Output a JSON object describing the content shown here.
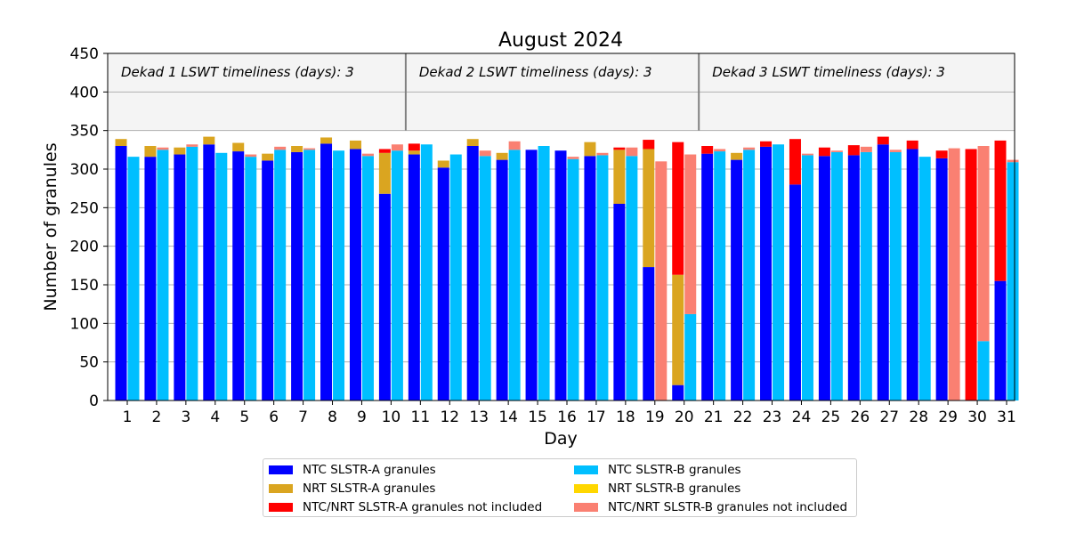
{
  "chart_data": {
    "type": "bar",
    "title": "August 2024",
    "xlabel": "Day",
    "ylabel": "Number of granules",
    "ylim": [
      0,
      450
    ],
    "yticks": [
      0,
      50,
      100,
      150,
      200,
      250,
      300,
      350,
      400,
      450
    ],
    "categories": [
      "1",
      "2",
      "3",
      "4",
      "5",
      "6",
      "7",
      "8",
      "9",
      "10",
      "11",
      "12",
      "13",
      "14",
      "15",
      "16",
      "17",
      "18",
      "19",
      "20",
      "21",
      "22",
      "23",
      "24",
      "25",
      "26",
      "27",
      "28",
      "29",
      "30",
      "31"
    ],
    "grid": true,
    "legend_position": "bottom-center",
    "shaded_band": [
      350,
      450
    ],
    "dekads": [
      {
        "label": "Dekad 1 LSWT timeliness (days): 3",
        "start_day": 1,
        "end_day": 10
      },
      {
        "label": "Dekad 2 LSWT timeliness (days): 3",
        "start_day": 11,
        "end_day": 20
      },
      {
        "label": "Dekad 3 LSWT timeliness (days): 3",
        "start_day": 21,
        "end_day": 31
      }
    ],
    "series": [
      {
        "key": "ntc_a",
        "name": "NTC SLSTR-A granules",
        "sensor": "A",
        "color": "#0000ff",
        "values": [
          330,
          316,
          319,
          332,
          323,
          311,
          322,
          333,
          326,
          268,
          319,
          302,
          330,
          312,
          325,
          324,
          317,
          255,
          173,
          20,
          320,
          312,
          329,
          280,
          317,
          318,
          332,
          326,
          314,
          0,
          155
        ]
      },
      {
        "key": "nrt_a",
        "name": "NRT SLSTR-A granules",
        "sensor": "A",
        "color": "#daa520",
        "values": [
          9,
          14,
          9,
          10,
          11,
          9,
          8,
          8,
          11,
          53,
          5,
          9,
          9,
          9,
          0,
          0,
          18,
          70,
          153,
          143,
          0,
          9,
          0,
          0,
          0,
          0,
          0,
          0,
          0,
          0,
          0
        ]
      },
      {
        "key": "miss_a",
        "name": "NTC/NRT SLSTR-A granules not included",
        "sensor": "A",
        "color": "#ff0000",
        "values": [
          0,
          0,
          0,
          0,
          0,
          0,
          0,
          0,
          0,
          5,
          9,
          0,
          0,
          0,
          0,
          0,
          0,
          3,
          12,
          172,
          10,
          0,
          7,
          59,
          11,
          13,
          10,
          11,
          10,
          326,
          182
        ]
      },
      {
        "key": "ntc_b",
        "name": "NTC SLSTR-B granules",
        "sensor": "B",
        "color": "#00bfff",
        "values": [
          316,
          325,
          329,
          321,
          316,
          325,
          325,
          324,
          317,
          324,
          332,
          319,
          317,
          325,
          330,
          313,
          318,
          317,
          0,
          112,
          323,
          325,
          332,
          318,
          322,
          322,
          322,
          316,
          0,
          77,
          309
        ]
      },
      {
        "key": "nrt_b",
        "name": "NRT SLSTR-B granules",
        "sensor": "B",
        "color": "#ffd700",
        "values": [
          0,
          0,
          0,
          0,
          0,
          0,
          0,
          0,
          0,
          0,
          0,
          0,
          0,
          0,
          0,
          0,
          0,
          0,
          0,
          0,
          0,
          0,
          0,
          0,
          0,
          0,
          0,
          0,
          0,
          0,
          0
        ]
      },
      {
        "key": "miss_b",
        "name": "NTC/NRT SLSTR-B granules not included",
        "sensor": "B",
        "color": "#fa8072",
        "values": [
          0,
          3,
          3,
          0,
          3,
          4,
          2,
          0,
          3,
          8,
          0,
          0,
          7,
          11,
          0,
          3,
          3,
          11,
          310,
          207,
          3,
          3,
          0,
          2,
          2,
          7,
          3,
          0,
          327,
          253,
          3
        ]
      }
    ],
    "legend_order": [
      "ntc_a",
      "ntc_b",
      "nrt_a",
      "nrt_b",
      "miss_a",
      "miss_b"
    ]
  }
}
